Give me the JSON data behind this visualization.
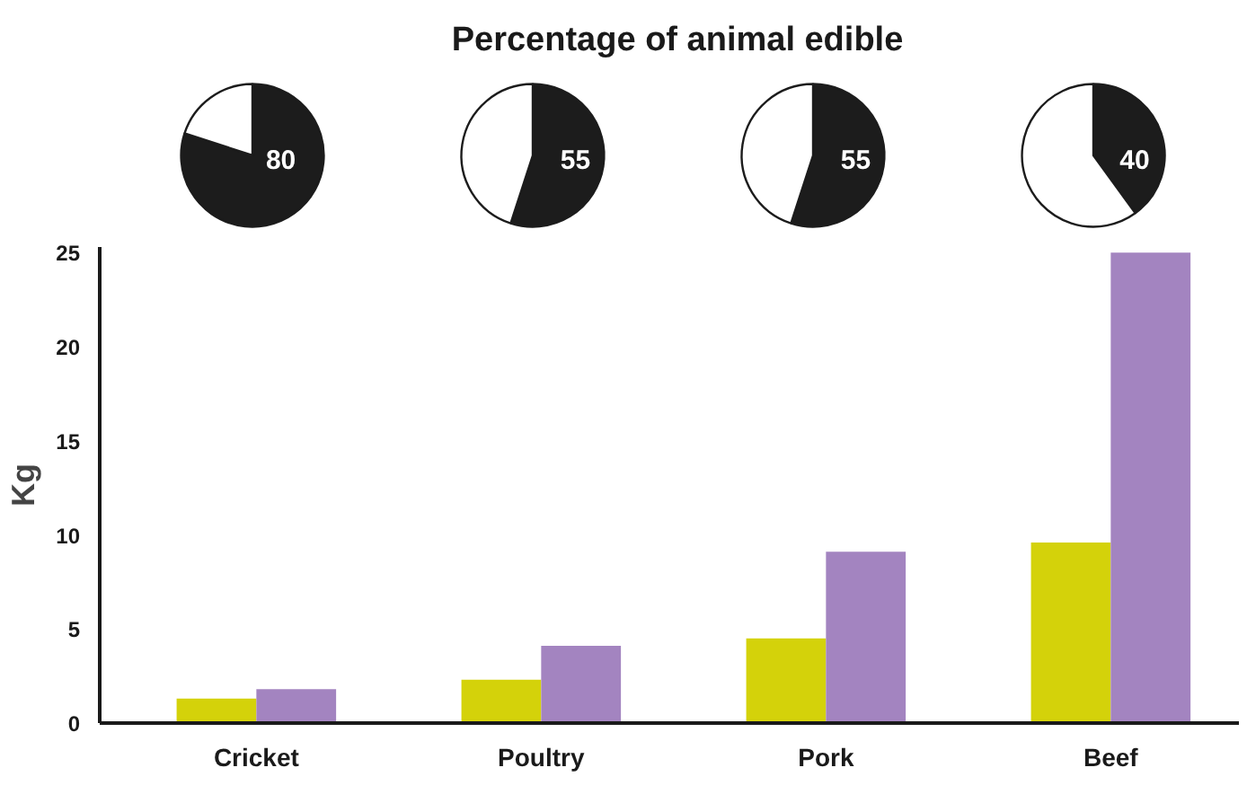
{
  "chart_data": [
    {
      "type": "pie",
      "title": "Percentage of animal edible",
      "categories": [
        null,
        null
      ],
      "values": [
        80,
        20
      ],
      "colors": [
        "#1c1c1c",
        "#ffffff"
      ],
      "value_labels": [
        "80",
        null
      ]
    },
    {
      "type": "pie",
      "categories": [
        null,
        null
      ],
      "values": [
        55,
        45
      ],
      "colors": [
        "#1c1c1c",
        "#ffffff"
      ],
      "value_labels": [
        "55",
        null
      ]
    },
    {
      "type": "pie",
      "categories": [
        null,
        null
      ],
      "values": [
        55,
        45
      ],
      "colors": [
        "#1c1c1c",
        "#ffffff"
      ],
      "value_labels": [
        "55",
        null
      ]
    },
    {
      "type": "pie",
      "categories": [
        null,
        null
      ],
      "values": [
        40,
        60
      ],
      "colors": [
        "#1c1c1c",
        "#ffffff"
      ],
      "value_labels": [
        "40",
        null
      ]
    },
    {
      "type": "bar",
      "ylabel": "Kg",
      "categories": [
        "Cricket",
        "Poultry",
        "Pork",
        "Beef"
      ],
      "series": [
        {
          "color": "#d4d20a",
          "values": [
            1.3,
            2.3,
            4.5,
            9.6
          ]
        },
        {
          "color": "#a384c0",
          "values": [
            1.8,
            4.1,
            9.1,
            25
          ]
        }
      ],
      "ylim": [
        0,
        25.3
      ],
      "yticks": [
        0,
        5,
        10,
        15,
        20,
        25
      ],
      "grid": false
    }
  ]
}
